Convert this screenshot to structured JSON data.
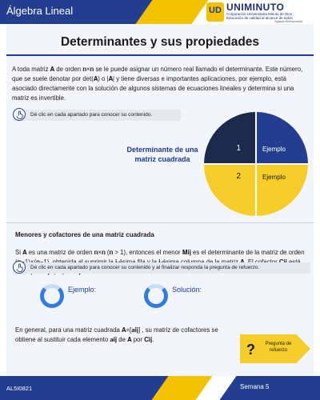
{
  "header": {
    "course_title": "Álgebra Lineal",
    "logo": {
      "emblem_letters": "UD",
      "name": "UNIMINUTO",
      "line1": "Corporación Universitaria Minuto de Dios",
      "line2": "Educación de calidad al alcance de todos",
      "line3": "Vigilada MinEducación"
    }
  },
  "page": {
    "title": "Determinantes y sus propiedades",
    "intro": "A toda matriz 𝐀 de orden 𝐧×𝐧 se le puede asignar un número real llamado el determinante. Este número, que se suele denotar por det(𝐀) o |𝐀| y tiene diversas e importantes aplicaciones, por ejemplo, está asociado directamente con la solución de algunos sistemas de ecuaciones lineales y determina si una matriz es invertible.",
    "hint1": "Dé clic en cada apartado para conocer su contenido.",
    "determinant_label": "Determinante de una matriz cuadrada",
    "quadrants": {
      "q1": "1",
      "q1_example": "Ejemplo",
      "q2": "2",
      "q2_example": "Ejemplo"
    },
    "subtitle": "Menores y cofactores de una matriz cuadrada",
    "minor_text": "Si 𝐀 es una matriz de orden 𝐧×𝐧 (𝐧 > 1), entonces el menor 𝐌𝐢𝐣 es el determinante de la matriz de orden (𝐧−1)×(𝐧−1), obtenida al suprimir la 𝐢-ésima fila y la 𝐣-ésima columna de la matriz 𝐀. El cofactor 𝐂𝐢𝐣 está dado por 𝐂𝐢𝐣=(−1)ⁱ⁺ʲ 𝐌𝐢𝐣.",
    "hint2": "Dé clic en cada apartado para conocer su contenido y al finalizar responda la pregunta de refuerzo.",
    "example_label": "Ejemplo:",
    "solution_label": "Solución:",
    "general_text": "En general, para una matriz cuadrada 𝐀=[𝐚𝐢𝐣] , su matriz de cofactores se obtiene al sustituir cada elemento 𝐚𝐢𝐣 de 𝐀 por 𝐂𝐢𝐣.",
    "refuerzo": {
      "icon": "?",
      "label": "Pregunta de refuerzo"
    }
  },
  "footer": {
    "code": "AL5I0821",
    "week": "Semana 5"
  },
  "colors": {
    "primary_blue": "#243e8f",
    "dark_navy": "#1b2a4a",
    "yellow": "#f7cd2b",
    "ring_blue": "#2f7de0"
  },
  "icons": [
    "hand-click-icon",
    "question-mark-icon"
  ]
}
